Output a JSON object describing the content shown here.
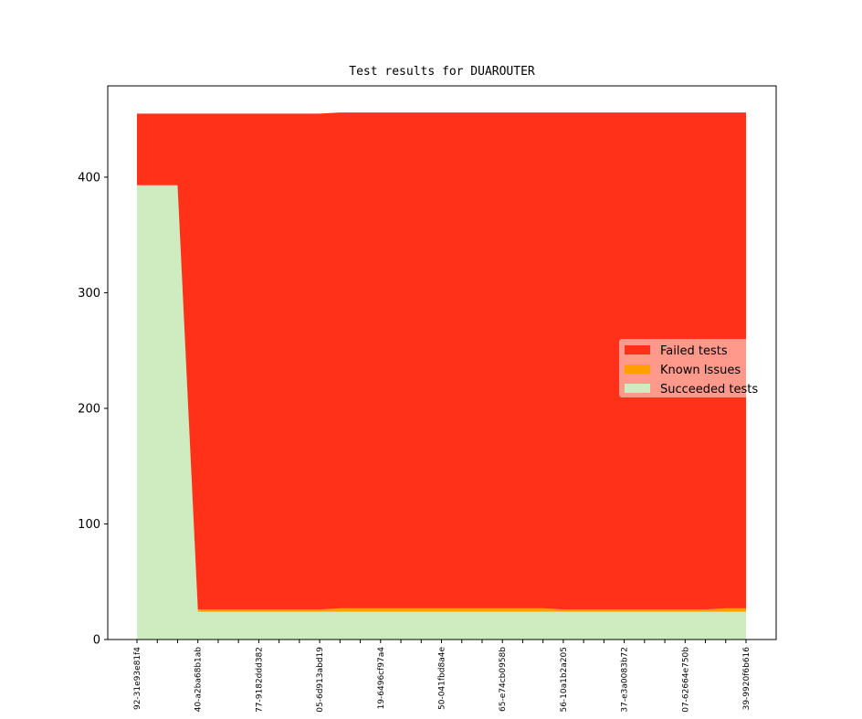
{
  "chart_data": {
    "type": "stacked_area",
    "title": "Test results for DUAROUTER",
    "categories": [
      "92-31e93e81f4",
      null,
      null,
      "40-a2ba68b1ab",
      null,
      null,
      "77-9182ddd382",
      null,
      null,
      "05-6d913abd19",
      null,
      null,
      "19-6496cf97a4",
      null,
      null,
      "50-041fbd8a4e",
      null,
      null,
      "65-e74cb0958b",
      null,
      null,
      "56-10a1b2a205",
      null,
      null,
      "37-e3a0083b72",
      null,
      null,
      "07-62664e750b",
      null,
      null,
      "39-9920f6b616"
    ],
    "series": [
      {
        "name": "Succeeded tests",
        "color": "#cfecc0",
        "values": [
          393,
          393,
          393,
          24,
          24,
          24,
          24,
          24,
          24,
          24,
          24,
          24,
          24,
          24,
          24,
          24,
          24,
          24,
          24,
          24,
          24,
          24,
          24,
          24,
          24,
          24,
          24,
          24,
          24,
          24,
          24
        ]
      },
      {
        "name": "Known Issues",
        "color": "#ffa000",
        "values": [
          0,
          0,
          0,
          2,
          2,
          2,
          2,
          2,
          2,
          2,
          3,
          3,
          3,
          3,
          3,
          3,
          3,
          3,
          3,
          3,
          3,
          2,
          2,
          2,
          2,
          2,
          2,
          2,
          2,
          3,
          3
        ]
      },
      {
        "name": "Failed tests",
        "color": "#ff3219",
        "values": [
          62,
          62,
          62,
          429,
          429,
          429,
          429,
          429,
          429,
          429,
          429,
          429,
          429,
          429,
          429,
          429,
          429,
          429,
          429,
          429,
          429,
          430,
          430,
          430,
          430,
          430,
          430,
          430,
          430,
          429,
          429
        ]
      }
    ],
    "ylim": [
      0,
      479
    ],
    "yticks": [
      0,
      100,
      200,
      300,
      400
    ],
    "legend": "center right"
  }
}
